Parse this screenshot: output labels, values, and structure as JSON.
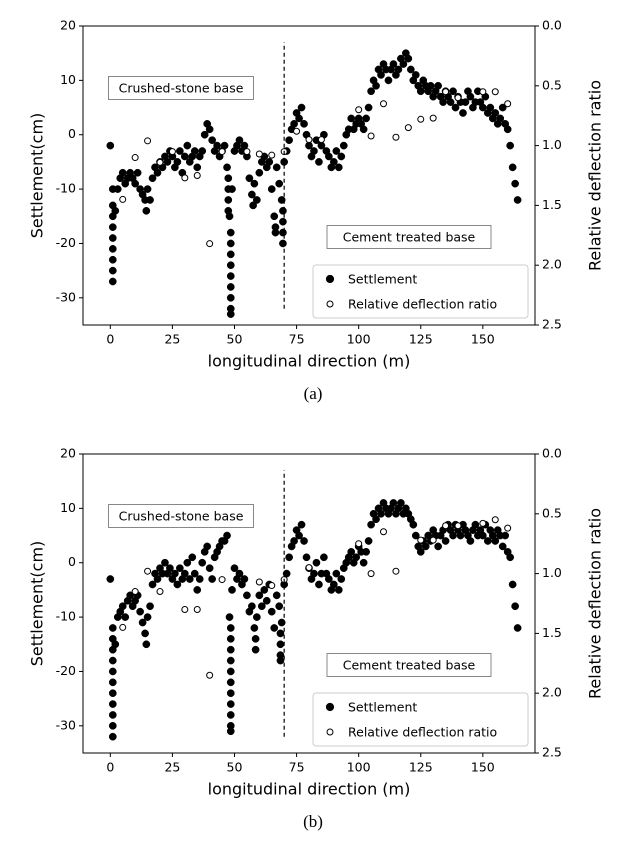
{
  "chart_data": [
    {
      "type": "scatter",
      "caption": "(a)",
      "xlabel": "longitudinal direction (m)",
      "ylabel": "Settlement(cm)",
      "y2label": "Relative deflection ratio",
      "xlim": [
        -11,
        171
      ],
      "xticks": [
        0,
        25,
        50,
        75,
        100,
        125,
        150
      ],
      "ylim": [
        -35,
        20
      ],
      "yticks": [
        -30,
        -20,
        -10,
        0,
        10,
        20
      ],
      "y2lim": [
        2.5,
        0
      ],
      "y2ticks": [
        {
          "value": 0,
          "label": "0.0"
        },
        0.5,
        {
          "value": 1,
          "label": "1.0"
        },
        1.5,
        {
          "value": 2,
          "label": "2.0"
        },
        2.5
      ],
      "vline_x": 70,
      "vline_y": [
        -32,
        17
      ],
      "annotations": [
        "Crushed-stone base",
        "Cement treated base"
      ],
      "legend": "lower right",
      "series": [
        {
          "name": "Settlement",
          "color": "#000000",
          "marker": "filled",
          "x": [
            0,
            1,
            2,
            3,
            4,
            5,
            6,
            7,
            8,
            9,
            10,
            11,
            12,
            13,
            14,
            15,
            16,
            17,
            18,
            19,
            20,
            21,
            22,
            23,
            24,
            25,
            26,
            27,
            28,
            29,
            30,
            31,
            32,
            33,
            34,
            35,
            36,
            37,
            38,
            39,
            40,
            41,
            42,
            43,
            44,
            45,
            46,
            47,
            48,
            49,
            50,
            51,
            52,
            53,
            54,
            55,
            56,
            57,
            58,
            59,
            60,
            61,
            62,
            63,
            64,
            65,
            66,
            67,
            68,
            69,
            70,
            71,
            72,
            73,
            74,
            75,
            76,
            77,
            78,
            79,
            80,
            81,
            82,
            83,
            84,
            85,
            86,
            87,
            88,
            89,
            90,
            91,
            92,
            93,
            94,
            95,
            96,
            97,
            98,
            99,
            100,
            101,
            102,
            103,
            104,
            105,
            106,
            107,
            108,
            109,
            110,
            111,
            112,
            113,
            114,
            115,
            116,
            117,
            118,
            119,
            120,
            121,
            122,
            123,
            124,
            125,
            126,
            127,
            128,
            129,
            130,
            131,
            132,
            133,
            134,
            135,
            136,
            137,
            138,
            139,
            140,
            141,
            142,
            143,
            144,
            145,
            146,
            147,
            148,
            149,
            150,
            151,
            152,
            153,
            154,
            155,
            156,
            157,
            158,
            159,
            160,
            161,
            162,
            163,
            164,
            1,
            1,
            1,
            1,
            1,
            1,
            1,
            1,
            47.5,
            47.5,
            47.5,
            47.5,
            48.5,
            48.5,
            48.5,
            48.5,
            48.5,
            48.5,
            48.5,
            48.5,
            48.5,
            57.5,
            14.5,
            66.5,
            66.5,
            69.5,
            69.5,
            69.5,
            69.5
          ],
          "values": [
            -2,
            -10,
            -14,
            -10,
            -8,
            -7,
            -9,
            -8,
            -7,
            -8,
            -9,
            -7,
            -10,
            -11,
            -12,
            -10,
            -12,
            -8,
            -6,
            -7,
            -5,
            -6,
            -4,
            -5,
            -3,
            -4,
            -6,
            -5,
            -3,
            -7,
            -4,
            -2,
            -5,
            -4,
            -3,
            -6,
            -4,
            -3,
            0,
            2,
            1,
            -1,
            -3,
            -2,
            -4,
            -3,
            -2,
            -6,
            -15,
            -10,
            -3,
            -2,
            -1,
            -3,
            -2,
            -4,
            -8,
            -11,
            -9,
            -12,
            -7,
            -5,
            -4,
            -6,
            -5,
            -10,
            -15,
            -6,
            -9,
            -12,
            -5,
            -3,
            -1,
            1,
            2,
            4,
            3,
            5,
            2,
            0,
            -2,
            -4,
            -3,
            -1,
            -5,
            -2,
            0,
            -3,
            -4,
            -6,
            -5,
            -3,
            -6,
            -4,
            -2,
            0,
            1,
            3,
            1,
            2,
            3,
            2,
            1,
            3,
            5,
            8,
            10,
            9,
            12,
            11,
            13,
            12,
            10,
            12,
            13,
            11,
            12,
            14,
            13,
            15,
            14,
            12,
            10,
            11,
            9,
            8,
            10,
            9,
            8,
            9,
            7,
            8,
            9,
            7,
            6,
            8,
            7,
            6,
            8,
            5,
            7,
            6,
            4,
            6,
            8,
            7,
            5,
            6,
            8,
            6,
            5,
            7,
            4,
            5,
            3,
            4,
            2,
            3,
            5,
            2,
            1,
            -2,
            -6,
            -9,
            -12,
            -13,
            -15,
            -17,
            -19,
            -21,
            -23,
            -25,
            -27,
            -8,
            -10,
            -12,
            -14,
            -18,
            -20,
            -22,
            -24,
            -26,
            -28,
            -30,
            -32,
            -33,
            -13,
            -14,
            -17,
            -18,
            -14,
            -16,
            -18,
            -20
          ]
        },
        {
          "name": "Relative deflection ratio",
          "color": "#000000",
          "marker": "open",
          "axis": "y2",
          "x": [
            5,
            10,
            15,
            20,
            25,
            30,
            35,
            40,
            45,
            55,
            60,
            65,
            70,
            75,
            80,
            85,
            100,
            105,
            110,
            115,
            120,
            125,
            130,
            135,
            140,
            150,
            155,
            160
          ],
          "values": [
            1.45,
            1.1,
            0.96,
            1.14,
            1.05,
            1.27,
            1.25,
            1.82,
            1.05,
            1.05,
            1.07,
            1.08,
            1.05,
            0.88,
            0.95,
            0.95,
            0.7,
            0.92,
            0.65,
            0.93,
            0.85,
            0.78,
            0.77,
            0.55,
            0.6,
            0.55,
            0.55,
            0.65
          ]
        }
      ]
    },
    {
      "type": "scatter",
      "caption": "(b)",
      "xlabel": "longitudinal direction (m)",
      "ylabel": "Settlement(cm)",
      "y2label": "Relative deflection ratio",
      "xlim": [
        -11,
        171
      ],
      "xticks": [
        0,
        25,
        50,
        75,
        100,
        125,
        150
      ],
      "ylim": [
        -35,
        20
      ],
      "yticks": [
        -30,
        -20,
        -10,
        0,
        10,
        20
      ],
      "y2lim": [
        2.5,
        0
      ],
      "y2ticks": [
        {
          "value": 0,
          "label": "0.0"
        },
        0.5,
        {
          "value": 1,
          "label": "1.0"
        },
        1.5,
        {
          "value": 2,
          "label": "2.0"
        },
        2.5
      ],
      "vline_x": 70,
      "vline_y": [
        -32,
        17
      ],
      "annotations": [
        "Crushed-stone base",
        "Cement treated base"
      ],
      "legend": "lower right",
      "series": [
        {
          "name": "Settlement",
          "color": "#000000",
          "marker": "filled",
          "x": [
            0,
            1,
            2,
            3,
            4,
            5,
            6,
            7,
            8,
            9,
            10,
            11,
            12,
            13,
            14,
            15,
            16,
            17,
            18,
            19,
            20,
            21,
            22,
            23,
            24,
            25,
            26,
            27,
            28,
            29,
            30,
            31,
            32,
            33,
            34,
            35,
            36,
            37,
            38,
            39,
            40,
            41,
            42,
            43,
            44,
            45,
            46,
            47,
            48,
            49,
            50,
            51,
            52,
            53,
            54,
            55,
            56,
            57,
            58,
            59,
            60,
            61,
            62,
            63,
            64,
            65,
            66,
            67,
            68,
            69,
            70,
            71,
            72,
            73,
            74,
            75,
            76,
            77,
            78,
            79,
            80,
            81,
            82,
            83,
            84,
            85,
            86,
            87,
            88,
            89,
            90,
            91,
            92,
            93,
            94,
            95,
            96,
            97,
            98,
            99,
            100,
            101,
            102,
            103,
            104,
            105,
            106,
            107,
            108,
            109,
            110,
            111,
            112,
            113,
            114,
            115,
            116,
            117,
            118,
            119,
            120,
            121,
            122,
            123,
            124,
            125,
            126,
            127,
            128,
            129,
            130,
            131,
            132,
            133,
            134,
            135,
            136,
            137,
            138,
            139,
            140,
            141,
            142,
            143,
            144,
            145,
            146,
            147,
            148,
            149,
            150,
            151,
            152,
            153,
            154,
            155,
            156,
            157,
            158,
            159,
            160,
            161,
            162,
            163,
            164,
            1,
            1,
            1,
            1,
            1,
            1,
            1,
            1,
            1,
            1,
            48.5,
            48.5,
            48.5,
            48.5,
            48.5,
            48.5,
            48.5,
            48.5,
            48.5,
            48.5,
            48.5,
            58.5,
            58.5,
            68.5,
            68.5,
            68.5,
            68.5,
            14.5
          ],
          "values": [
            -3,
            -12,
            -15,
            -10,
            -9,
            -8,
            -10,
            -7,
            -6,
            -8,
            -7,
            -6,
            -9,
            -11,
            -13,
            -10,
            -8,
            -4,
            -2,
            -3,
            -1,
            -2,
            0,
            -2,
            -1,
            -3,
            -2,
            -4,
            -1,
            -3,
            -2,
            0,
            -3,
            1,
            -2,
            -5,
            -3,
            0,
            2,
            3,
            -1,
            -3,
            1,
            2,
            3,
            4,
            4,
            5,
            -10,
            -5,
            -1,
            -3,
            -2,
            -4,
            -3,
            -6,
            -9,
            -8,
            -12,
            -10,
            -6,
            -8,
            -5,
            -7,
            -4,
            -9,
            -12,
            -6,
            -8,
            -11,
            -4,
            -2,
            1,
            3,
            4,
            6,
            5,
            7,
            4,
            1,
            -1,
            -3,
            -2,
            0,
            -4,
            -2,
            1,
            -2,
            -3,
            -5,
            -4,
            -2,
            -5,
            -3,
            -1,
            0,
            1,
            2,
            0,
            1,
            3,
            2,
            0,
            2,
            4,
            7,
            9,
            8,
            10,
            9,
            11,
            10,
            9,
            10,
            11,
            9,
            10,
            11,
            9,
            10,
            9,
            8,
            7,
            5,
            3,
            2,
            4,
            3,
            5,
            4,
            6,
            5,
            3,
            5,
            6,
            4,
            7,
            6,
            5,
            7,
            6,
            5,
            7,
            6,
            5,
            4,
            6,
            7,
            5,
            6,
            5,
            7,
            4,
            6,
            5,
            4,
            6,
            5,
            3,
            5,
            2,
            1,
            -4,
            -8,
            -12,
            -14,
            -16,
            -18,
            -20,
            -22,
            -24,
            -26,
            -28,
            -30,
            -32,
            -12,
            -14,
            -16,
            -18,
            -20,
            -22,
            -24,
            -26,
            -28,
            -30,
            -31,
            -14,
            -16,
            -13,
            -15,
            -17,
            -18,
            -15
          ]
        },
        {
          "name": "Relative deflection ratio",
          "color": "#000000",
          "marker": "open",
          "axis": "y2",
          "x": [
            5,
            10,
            15,
            20,
            30,
            35,
            40,
            45,
            60,
            65,
            70,
            80,
            100,
            105,
            110,
            115,
            125,
            130,
            135,
            140,
            150,
            155,
            160
          ],
          "values": [
            1.45,
            1.15,
            0.98,
            1.15,
            1.3,
            1.3,
            1.85,
            1.05,
            1.07,
            1.1,
            1.05,
            0.95,
            0.75,
            1.0,
            0.65,
            0.98,
            0.72,
            0.72,
            0.6,
            0.6,
            0.58,
            0.55,
            0.62
          ]
        }
      ]
    }
  ]
}
